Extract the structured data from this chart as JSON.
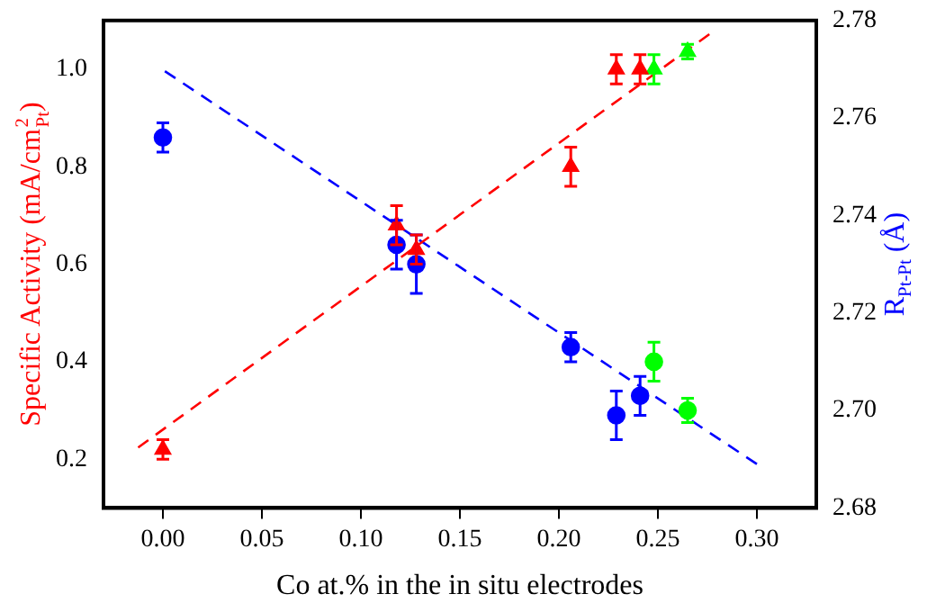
{
  "chart_data": {
    "type": "scatter",
    "xlabel": "Co at.% in the in situ electrodes",
    "ylabel": "Specific Activity (mA/cm$^{2}$$_{Pt}$)",
    "y2label": "R$_{Pt-Pt}$ (Å)",
    "xlim": [
      -0.03,
      0.33
    ],
    "xticks": [
      {
        "value": 0,
        "label": "0.00"
      },
      0.05,
      {
        "value": 0.1,
        "label": "0.10"
      },
      0.15,
      {
        "value": 0.2,
        "label": "0.20"
      },
      0.25,
      {
        "value": 0.3,
        "label": "0.30"
      }
    ],
    "ylim": [
      0.1,
      1.1
    ],
    "yticks": [
      0.2,
      0.4,
      0.6,
      0.8,
      {
        "value": 1,
        "label": "1.0"
      }
    ],
    "y2lim": [
      2.68,
      2.78
    ],
    "y2ticks": [
      2.68,
      {
        "value": 2.7,
        "label": "2.70"
      },
      2.72,
      2.74,
      2.76,
      2.78
    ],
    "grid": false,
    "legend": false,
    "series": [
      {
        "color": "#ff0000",
        "marker": "triangle",
        "x": [
          0,
          0.118,
          0.128,
          0.206,
          0.229,
          0.241
        ],
        "values": [
          0.22,
          0.68,
          0.63,
          0.8,
          1.0,
          1.0
        ],
        "errors": [
          0.02,
          0.04,
          0.03,
          0.04,
          0.03,
          0.03
        ]
      },
      {
        "color": "#00ff00",
        "marker": "triangle",
        "x": [
          0.248,
          0.265
        ],
        "values": [
          1.0,
          1.036
        ],
        "errors": [
          0.03,
          0.015
        ]
      },
      {
        "axis": "y2",
        "color": "#0000ff",
        "marker": "circle",
        "x": [
          0,
          0.118,
          0.128,
          0.206,
          0.229,
          0.241
        ],
        "values": [
          2.756,
          2.734,
          2.73,
          2.713,
          2.699,
          2.703
        ],
        "errors": [
          0.003,
          0.005,
          0.006,
          0.003,
          0.005,
          0.004
        ]
      },
      {
        "axis": "y2",
        "color": "#00ff00",
        "marker": "circle",
        "x": [
          0.248,
          0.265
        ],
        "values": [
          2.71,
          2.7
        ],
        "errors": [
          0.004,
          0.0025
        ]
      },
      {
        "type": "line",
        "color": "#ff0000",
        "line_style": "dashed",
        "marker": "none",
        "x": [
          -0.0125,
          0.276
        ],
        "values": [
          0.224,
          1.072
        ]
      },
      {
        "type": "line",
        "axis": "y2",
        "color": "#0000ff",
        "line_style": "dashed",
        "marker": "none",
        "x": [
          0.001,
          0.3
        ],
        "values": [
          2.7696,
          2.689
        ]
      }
    ]
  }
}
